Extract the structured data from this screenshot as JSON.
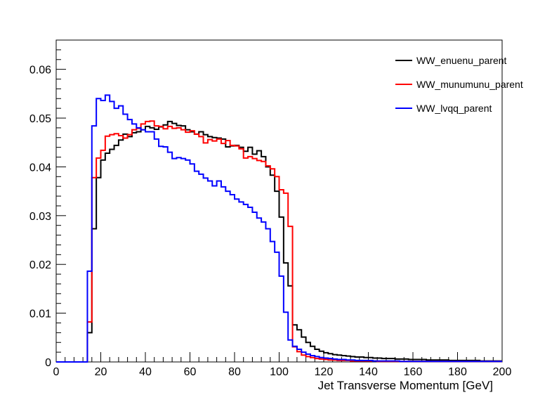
{
  "chart_data": {
    "type": "line",
    "step": true,
    "xlabel": "Jet Transverse Momentum [GeV]",
    "ylabel": "",
    "xlim": [
      0,
      200
    ],
    "ylim": [
      0,
      0.066
    ],
    "bin_width": 2,
    "x_major_ticks": [
      0,
      20,
      40,
      60,
      80,
      100,
      120,
      140,
      160,
      180,
      200
    ],
    "y_major_ticks": [
      0,
      0.01,
      0.02,
      0.03,
      0.04,
      0.05,
      0.06
    ],
    "x_tick_labels": [
      "0",
      "20",
      "40",
      "60",
      "80",
      "100",
      "120",
      "140",
      "160",
      "180",
      "200"
    ],
    "y_tick_labels": [
      "0",
      "0.01",
      "0.02",
      "0.03",
      "0.04",
      "0.05",
      "0.06"
    ],
    "grid": false,
    "legend_position": "top-right",
    "series": [
      {
        "name": "WW_enuenu_parent",
        "color": "#000000",
        "values": [
          0,
          0,
          0,
          0,
          0,
          0,
          0,
          0.006,
          0.0273,
          0.0378,
          0.0414,
          0.0428,
          0.0436,
          0.0444,
          0.0455,
          0.0467,
          0.0462,
          0.047,
          0.0472,
          0.0476,
          0.0483,
          0.048,
          0.0477,
          0.0482,
          0.0486,
          0.0493,
          0.0489,
          0.0485,
          0.0484,
          0.0476,
          0.0472,
          0.0467,
          0.0472,
          0.0466,
          0.0462,
          0.046,
          0.0459,
          0.0457,
          0.0441,
          0.0443,
          0.0444,
          0.044,
          0.0432,
          0.044,
          0.0426,
          0.0433,
          0.0421,
          0.04,
          0.0383,
          0.035,
          0.0297,
          0.0203,
          0.0156,
          0.0076,
          0.0066,
          0.0051,
          0.004,
          0.0032,
          0.0026,
          0.0022,
          0.0019,
          0.0017,
          0.0015,
          0.0014,
          0.0013,
          0.0012,
          0.0011,
          0.001,
          0.001,
          0.0009,
          0.0009,
          0.0008,
          0.0008,
          0.0007,
          0.0007,
          0.0007,
          0.0006,
          0.0006,
          0.0006,
          0.0005,
          0.0005,
          0.0005,
          0.0005,
          0.0004,
          0.0004,
          0.0004,
          0.0004,
          0.0004,
          0.0003,
          0.0003,
          0.0003,
          0.0003,
          0.0003,
          0.0003,
          0.0003,
          0.0002,
          0.0002,
          0.0002,
          0.0002,
          0.0002
        ]
      },
      {
        "name": "WW_munumunu_parent",
        "color": "#ff0000",
        "values": [
          0,
          0,
          0,
          0,
          0,
          0,
          0,
          0.0082,
          0.0378,
          0.0418,
          0.0434,
          0.0463,
          0.0466,
          0.0468,
          0.0464,
          0.0459,
          0.0466,
          0.0476,
          0.0479,
          0.0488,
          0.0493,
          0.0494,
          0.0484,
          0.0483,
          0.0478,
          0.0483,
          0.0479,
          0.048,
          0.0476,
          0.0471,
          0.0474,
          0.0467,
          0.0462,
          0.0449,
          0.0456,
          0.0453,
          0.0457,
          0.0448,
          0.0454,
          0.0444,
          0.0443,
          0.0437,
          0.0418,
          0.0421,
          0.0417,
          0.0413,
          0.0411,
          0.0402,
          0.0396,
          0.038,
          0.0353,
          0.0346,
          0.0278,
          0.0031,
          0.0021,
          0.0014,
          0.0011,
          0.0009,
          0.0007,
          0.0006,
          0.0005,
          0.0004,
          0.0004,
          0.0003,
          0.0003,
          0.0003,
          0.0002,
          0.0002,
          0.0002,
          0.0002,
          0.0002,
          0.0002,
          0.0001,
          0.0001,
          0.0001,
          0.0001,
          0.0001,
          0.0001,
          0.0001,
          0.0001,
          0.0001,
          0.0001,
          0.0001,
          0.0001,
          0.0001,
          0.0001,
          0.0001,
          0.0001,
          0.0001,
          0.0001,
          0.0001,
          0.0001,
          0.0001,
          0.0001,
          0.0001,
          0.0001,
          0.0001,
          0.0001,
          0.0001,
          0.0001
        ]
      },
      {
        "name": "WW_lvqq_parent",
        "color": "#0000ff",
        "values": [
          0,
          0,
          0,
          0,
          0,
          0,
          0,
          0.0186,
          0.0484,
          0.054,
          0.0536,
          0.0547,
          0.0534,
          0.052,
          0.0525,
          0.0508,
          0.0497,
          0.0488,
          0.048,
          0.0476,
          0.0472,
          0.0472,
          0.0457,
          0.0442,
          0.0441,
          0.043,
          0.0417,
          0.0419,
          0.0417,
          0.0414,
          0.0406,
          0.0391,
          0.0385,
          0.0377,
          0.0371,
          0.0361,
          0.0371,
          0.0359,
          0.035,
          0.0343,
          0.0334,
          0.0328,
          0.0323,
          0.0317,
          0.0307,
          0.0295,
          0.0287,
          0.0273,
          0.0247,
          0.0225,
          0.0176,
          0.0102,
          0.0045,
          0.0032,
          0.0026,
          0.002,
          0.0016,
          0.0013,
          0.0011,
          0.0009,
          0.0008,
          0.0007,
          0.0006,
          0.0005,
          0.0005,
          0.0004,
          0.0004,
          0.0003,
          0.0003,
          0.0003,
          0.0003,
          0.0002,
          0.0002,
          0.0002,
          0.0002,
          0.0002,
          0.0002,
          0.0001,
          0.0001,
          0.0001,
          0.0001,
          0.0001,
          0.0001,
          0.0001,
          0.0001,
          0.0001,
          0.0001,
          0.0001,
          0.0001,
          0.0001,
          0.0001,
          0.0001,
          0.0001,
          0.0001,
          0.0001,
          0.0001,
          0.0001,
          0.0001,
          0.0001,
          0.0001
        ]
      }
    ]
  }
}
